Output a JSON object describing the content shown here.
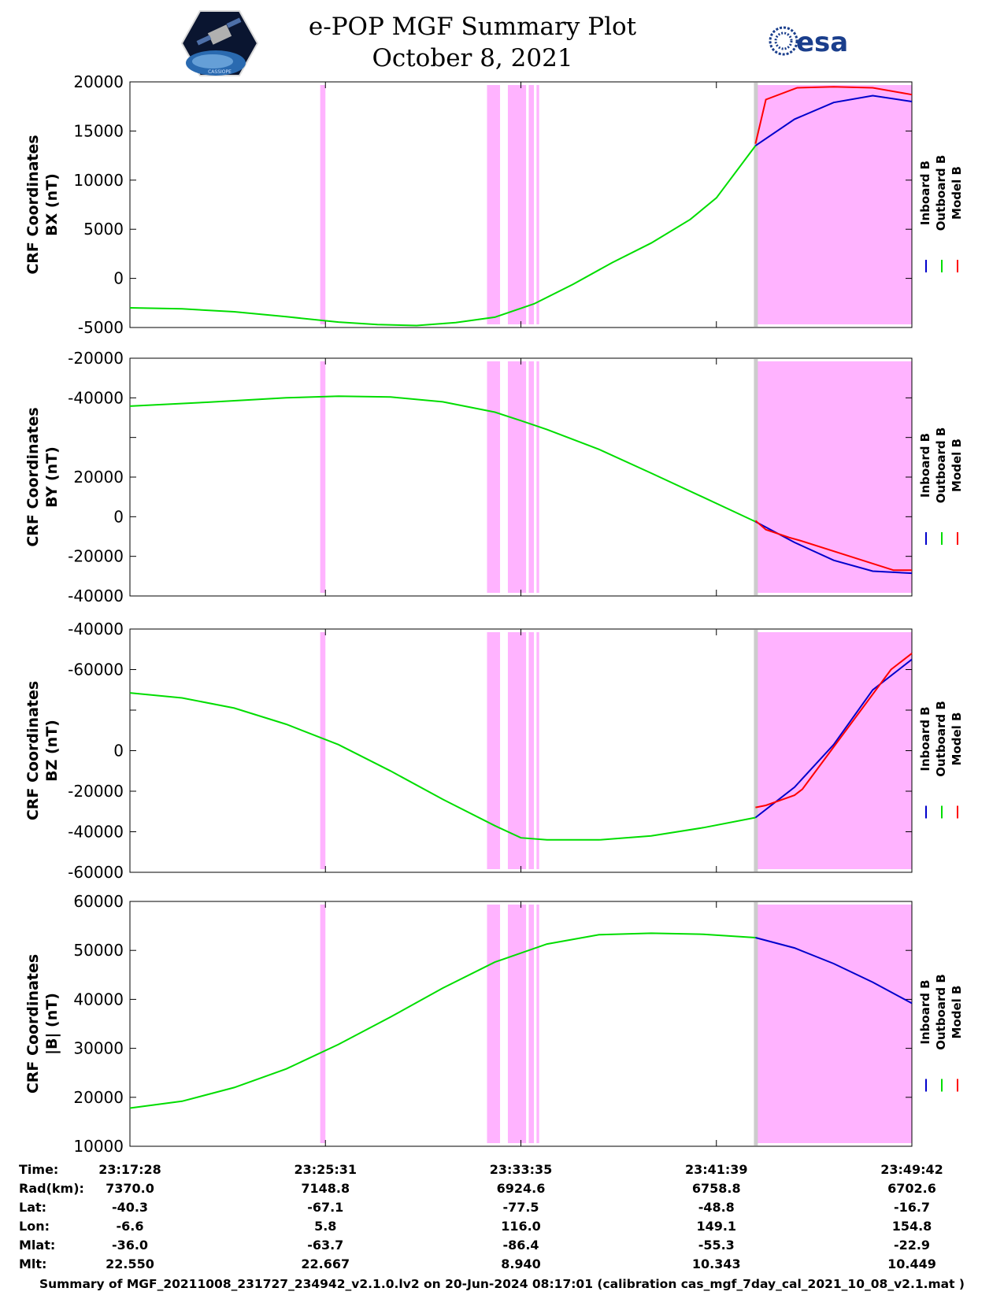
{
  "header": {
    "title_line1": "e-POP MGF Summary Plot",
    "title_line2": "October 8, 2021",
    "left_logo_text": "CASSIOPE",
    "right_logo_text": "esa"
  },
  "colors": {
    "inboard": "#0000cc",
    "outboard": "#00dd00",
    "model": "#ff0000",
    "flag_shading": "#ffb3ff",
    "gap_shading": "#cccccc"
  },
  "chart_data": [
    {
      "type": "line",
      "ylabel": [
        "CRF Coordinates",
        "BX (nT)"
      ],
      "yticks": [
        "-5000",
        "0",
        "5000",
        "10000",
        "15000",
        "20000"
      ],
      "ylim": [
        -5000,
        20000
      ],
      "legend": [
        "Inboard B",
        "Outboard B",
        "Model B"
      ],
      "series": [
        {
          "name": "Outboard B",
          "x": [
            0,
            2,
            4,
            6,
            8,
            9.5,
            11,
            12.5,
            14,
            15.5,
            17,
            18.5,
            20,
            21.5,
            22.5,
            24
          ],
          "y": [
            -3000,
            -3100,
            -3400,
            -3900,
            -4450,
            -4700,
            -4800,
            -4500,
            -3950,
            -2600,
            -600,
            1600,
            3600,
            6000,
            8200,
            13500
          ]
        },
        {
          "name": "Inboard B",
          "x": [
            24,
            25.5,
            27,
            28.5,
            30
          ],
          "y": [
            13500,
            16200,
            17900,
            18600,
            18000
          ]
        },
        {
          "name": "Model B",
          "x": [
            24,
            24.4,
            25.6,
            27,
            28.5,
            30
          ],
          "y": [
            13700,
            18200,
            19400,
            19500,
            19400,
            18700
          ]
        }
      ],
      "flag_spans": [
        [
          7.3,
          7.5
        ],
        [
          13.7,
          14.2
        ],
        [
          14.5,
          15.2
        ],
        [
          15.3,
          15.5
        ],
        [
          15.6,
          15.7
        ],
        [
          24,
          30
        ]
      ]
    },
    {
      "type": "line",
      "ylabel": [
        "CRF Coordinates",
        "BY (nT)"
      ],
      "yticks": [
        "-40000",
        "-20000",
        "0",
        "20000",
        "",
        "-40000",
        "-20000"
      ],
      "ylim": [
        -40000,
        80000
      ],
      "legend": [
        "Inboard B",
        "Outboard B",
        "Model B"
      ],
      "series": [
        {
          "name": "Outboard B",
          "x": [
            0,
            3,
            6,
            8,
            10,
            12,
            14,
            15,
            16,
            18,
            20,
            22,
            24
          ],
          "y": [
            55800,
            57800,
            60000,
            60800,
            60400,
            58000,
            52800,
            48500,
            44000,
            34000,
            22000,
            9800,
            -2500
          ]
        },
        {
          "name": "Inboard B",
          "x": [
            24,
            25.5,
            27,
            28.5,
            30
          ],
          "y": [
            -2500,
            -13000,
            -22000,
            -27500,
            -28500
          ]
        },
        {
          "name": "Model B",
          "x": [
            24,
            24.4,
            25.3,
            25.7,
            29.3,
            30
          ],
          "y": [
            -2000,
            -6500,
            -10500,
            -12000,
            -27000,
            -27000
          ]
        }
      ],
      "flag_spans": [
        [
          7.3,
          7.5
        ],
        [
          13.7,
          14.2
        ],
        [
          14.5,
          15.2
        ],
        [
          15.3,
          15.5
        ],
        [
          15.6,
          15.7
        ],
        [
          24,
          30
        ]
      ]
    },
    {
      "type": "line",
      "ylabel": [
        "CRF Coordinates",
        "BZ (nT)"
      ],
      "yticks": [
        "-60000",
        "-40000",
        "-20000",
        "0",
        "",
        "-60000",
        "-40000"
      ],
      "ylim": [
        -60000,
        60000
      ],
      "legend": [
        "Inboard B",
        "Outboard B",
        "Model B"
      ],
      "series": [
        {
          "name": "Outboard B",
          "x": [
            0,
            2,
            4,
            6,
            8,
            10,
            12,
            14,
            15,
            16,
            18,
            20,
            22,
            24
          ],
          "y": [
            28500,
            26000,
            21000,
            13000,
            3000,
            -10000,
            -24000,
            -37000,
            -43000,
            -44000,
            -44000,
            -42000,
            -38000,
            -33000
          ]
        },
        {
          "name": "Inboard B",
          "x": [
            24,
            25.5,
            27,
            28.5,
            30
          ],
          "y": [
            -33000,
            -18000,
            3000,
            30000,
            45000
          ]
        },
        {
          "name": "Model B",
          "x": [
            24,
            24.4,
            25.5,
            25.8,
            29.2,
            30
          ],
          "y": [
            -28000,
            -27000,
            -22000,
            -19000,
            40000,
            48000
          ]
        }
      ],
      "flag_spans": [
        [
          7.3,
          7.5
        ],
        [
          13.7,
          14.2
        ],
        [
          14.5,
          15.2
        ],
        [
          15.3,
          15.5
        ],
        [
          15.6,
          15.7
        ],
        [
          24,
          30
        ]
      ]
    },
    {
      "type": "line",
      "ylabel": [
        "CRF Coordinates",
        "|B| (nT)"
      ],
      "yticks": [
        "10000",
        "20000",
        "30000",
        "40000",
        "50000",
        "60000"
      ],
      "ylim": [
        10000,
        60000
      ],
      "legend": [
        "Inboard B",
        "Outboard B",
        "Model B"
      ],
      "series": [
        {
          "name": "Outboard B",
          "x": [
            0,
            2,
            4,
            6,
            8,
            10,
            12,
            14,
            16,
            18,
            20,
            22,
            24
          ],
          "y": [
            17800,
            19200,
            22000,
            25800,
            30800,
            36400,
            42300,
            47600,
            51300,
            53200,
            53500,
            53300,
            52600
          ]
        },
        {
          "name": "Inboard B",
          "x": [
            24,
            25.5,
            27,
            28.5,
            30
          ],
          "y": [
            52600,
            50500,
            47300,
            43500,
            39200
          ]
        }
      ],
      "flag_spans": [
        [
          7.3,
          7.5
        ],
        [
          13.7,
          14.2
        ],
        [
          14.5,
          15.2
        ],
        [
          15.3,
          15.5
        ],
        [
          15.6,
          15.7
        ],
        [
          24,
          30
        ]
      ]
    }
  ],
  "footer": {
    "rows": [
      {
        "label": "Time:",
        "values": [
          "23:17:28",
          "23:25:31",
          "23:33:35",
          "23:41:39",
          "23:49:42"
        ]
      },
      {
        "label": "Rad(km):",
        "values": [
          "7370.0",
          "7148.8",
          "6924.6",
          "6758.8",
          "6702.6"
        ]
      },
      {
        "label": "Lat:",
        "values": [
          "-40.3",
          "-67.1",
          "-77.5",
          "-48.8",
          "-16.7"
        ]
      },
      {
        "label": "Lon:",
        "values": [
          "-6.6",
          "5.8",
          "116.0",
          "149.1",
          "154.8"
        ]
      },
      {
        "label": "Mlat:",
        "values": [
          "-36.0",
          "-63.7",
          "-86.4",
          "-55.3",
          "-22.9"
        ]
      },
      {
        "label": "Mlt:",
        "values": [
          "22.550",
          "22.667",
          "8.940",
          "10.343",
          "10.449"
        ]
      }
    ],
    "summary": "Summary of MGF_20211008_231727_234942_v2.1.0.lv2 on 20-Jun-2024 08:17:01 (calibration cas_mgf_7day_cal_2021_10_08_v2.1.mat )"
  }
}
